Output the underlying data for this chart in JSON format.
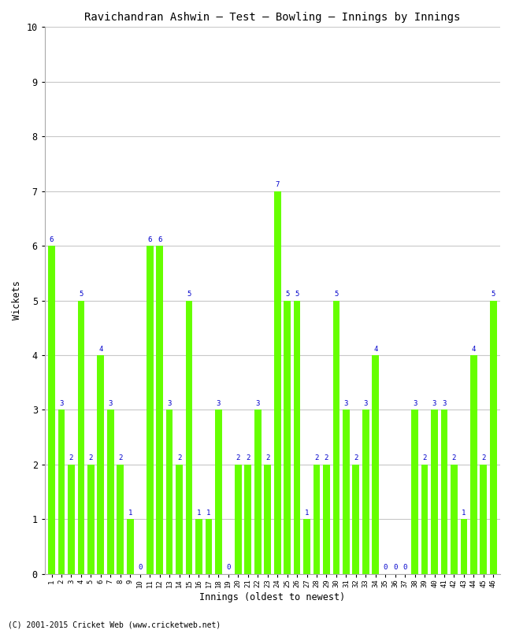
{
  "title": "Ravichandran Ashwin – Test – Bowling – Innings by Innings",
  "xlabel": "Innings (oldest to newest)",
  "ylabel": "Wickets",
  "ylim": [
    0,
    10
  ],
  "yticks": [
    0,
    1,
    2,
    3,
    4,
    5,
    6,
    7,
    8,
    9,
    10
  ],
  "bar_color": "#66ff00",
  "label_color": "#0000cc",
  "background_color": "#ffffff",
  "grid_color": "#c8c8c8",
  "copyright": "(C) 2001-2015 Cricket Web (www.cricketweb.net)",
  "innings": [
    1,
    2,
    3,
    4,
    5,
    6,
    7,
    8,
    9,
    10,
    11,
    12,
    13,
    14,
    15,
    16,
    17,
    18,
    19,
    20,
    21,
    22,
    23,
    24,
    25,
    26,
    27,
    28,
    29,
    30,
    31,
    32,
    33,
    34,
    35,
    36,
    37,
    38,
    39,
    40,
    41,
    42,
    43,
    44,
    45,
    46
  ],
  "wickets": [
    6,
    3,
    2,
    5,
    2,
    4,
    3,
    2,
    1,
    0,
    6,
    6,
    3,
    2,
    5,
    1,
    1,
    3,
    0,
    2,
    2,
    3,
    2,
    7,
    5,
    5,
    1,
    2,
    2,
    5,
    3,
    2,
    3,
    4,
    0,
    0,
    0,
    3,
    2,
    3,
    3,
    2,
    1,
    4,
    2,
    5
  ]
}
